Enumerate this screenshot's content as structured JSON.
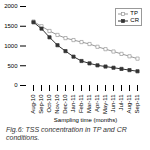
{
  "chart_data": {
    "type": "line",
    "xlabel": "Sampling time (months)",
    "caption": "Fig.6: TSS concentration in TP and CR conditions.",
    "categories": [
      "Aug-10",
      "Sep-10",
      "Oct-10",
      "Nov-10",
      "Dec-10",
      "Jan-11",
      "Feb-11",
      "Mar-11",
      "Apr-11",
      "May-11",
      "Jun-11",
      "Jul-11",
      "Aug-11",
      "Sep-11"
    ],
    "series": [
      {
        "name": "TP",
        "color": "#999999",
        "marker": "square",
        "values": [
          1620,
          1500,
          1380,
          1280,
          1200,
          1150,
          1100,
          1050,
          980,
          920,
          860,
          800,
          740,
          680
        ]
      },
      {
        "name": "CR",
        "color": "#333333",
        "marker": "square",
        "values": [
          1600,
          1440,
          1220,
          1020,
          870,
          730,
          620,
          560,
          510,
          480,
          450,
          420,
          390,
          360
        ]
      }
    ],
    "ylim": [
      0,
      2000
    ],
    "yticks": [
      0,
      500,
      1000,
      1500,
      2000
    ],
    "legend": "upper right",
    "grid": false
  }
}
